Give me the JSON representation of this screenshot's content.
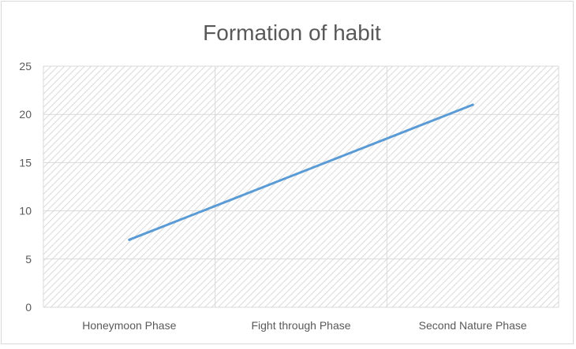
{
  "colors": {
    "line": "#5b9bd5",
    "grid": "#d9d9d9",
    "hatch": "#d0d0d0",
    "text": "#595959"
  },
  "chart_data": {
    "type": "line",
    "title": "Formation of habit",
    "xlabel": "",
    "ylabel": "",
    "categories": [
      "Honeymoon Phase",
      "Fight through Phase",
      "Second Nature Phase"
    ],
    "series": [
      {
        "values": [
          7,
          14,
          21
        ]
      }
    ],
    "ylim": [
      0,
      25
    ],
    "yticks": [
      "0",
      "5",
      "10",
      "15",
      "20",
      "25"
    ],
    "grid": true,
    "legend": "none",
    "plot_area_fill": "diagonal hatch"
  }
}
